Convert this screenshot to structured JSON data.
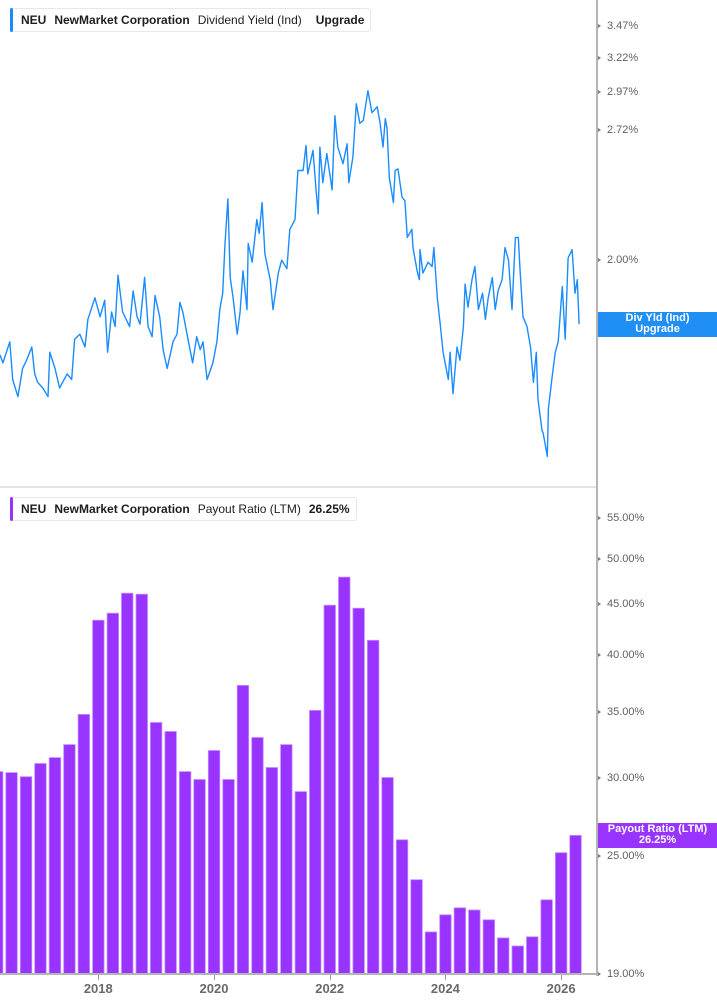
{
  "panels": {
    "top": {
      "legend": {
        "ticker": "NEU",
        "company": "NewMarket Corporation",
        "metric": "Dividend Yield (Ind)",
        "value": "Upgrade",
        "accent": "#1a8cff"
      },
      "value_tag": {
        "line1": "Div Yld (Ind)",
        "line2": "Upgrade",
        "bg": "#1f8ef5"
      }
    },
    "bottom": {
      "legend": {
        "ticker": "NEU",
        "company": "NewMarket Corporation",
        "metric": "Payout Ratio (LTM)",
        "value": "26.25%",
        "accent": "#9933ff"
      },
      "value_tag": {
        "line1": "Payout Ratio (LTM)",
        "line2": "26.25%",
        "bg": "#9933ff"
      }
    }
  },
  "x_axis": {
    "tick_labels": [
      "2018",
      "2020",
      "2022",
      "2024",
      "2026"
    ]
  },
  "chart_data": [
    {
      "type": "line",
      "title": "NEU NewMarket Corporation Dividend Yield (Ind)",
      "series_name": "Dividend Yield (Ind)",
      "color": "#1a8cff",
      "xlabel": "",
      "ylabel": "",
      "y_scale": "log",
      "grid": false,
      "legend_position": "top-left",
      "xlim": [
        2016.3,
        2026.62
      ],
      "ylim": [
        1.175,
        3.69
      ],
      "yticks": [
        3.47,
        3.22,
        2.97,
        2.72,
        2.0
      ],
      "ytick_labels": [
        "3.47%",
        "3.22%",
        "2.97%",
        "2.72%",
        "2.00%"
      ],
      "last_value_label": "Upgrade",
      "x": [
        2016.3,
        2016.35,
        2016.47,
        2016.52,
        2016.61,
        2016.69,
        2016.76,
        2016.85,
        2016.9,
        2016.95,
        2017.04,
        2017.13,
        2017.16,
        2017.25,
        2017.33,
        2017.46,
        2017.54,
        2017.59,
        2017.68,
        2017.77,
        2017.82,
        2017.94,
        2018.03,
        2018.11,
        2018.16,
        2018.23,
        2018.29,
        2018.34,
        2018.42,
        2018.54,
        2018.6,
        2018.67,
        2018.72,
        2018.8,
        2018.86,
        2018.93,
        2018.98,
        2019.06,
        2019.12,
        2019.19,
        2019.29,
        2019.36,
        2019.41,
        2019.46,
        2019.55,
        2019.63,
        2019.7,
        2019.76,
        2019.81,
        2019.88,
        2019.98,
        2020.05,
        2020.1,
        2020.15,
        2020.19,
        2020.24,
        2020.28,
        2020.33,
        2020.4,
        2020.45,
        2020.5,
        2020.57,
        2020.59,
        2020.66,
        2020.74,
        2020.78,
        2020.83,
        2020.88,
        2020.97,
        2021.02,
        2021.11,
        2021.17,
        2021.26,
        2021.31,
        2021.4,
        2021.45,
        2021.54,
        2021.59,
        2021.62,
        2021.71,
        2021.76,
        2021.8,
        2021.83,
        2021.88,
        2021.95,
        2022.04,
        2022.09,
        2022.14,
        2022.23,
        2022.3,
        2022.33,
        2022.4,
        2022.46,
        2022.52,
        2022.58,
        2022.66,
        2022.73,
        2022.82,
        2022.87,
        2022.92,
        2022.96,
        2022.99,
        2023.03,
        2023.1,
        2023.13,
        2023.18,
        2023.25,
        2023.3,
        2023.34,
        2023.42,
        2023.44,
        2023.51,
        2023.55,
        2023.56,
        2023.61,
        2023.7,
        2023.77,
        2023.8,
        2023.86,
        2023.91,
        2023.96,
        2024.05,
        2024.08,
        2024.13,
        2024.2,
        2024.25,
        2024.31,
        2024.34,
        2024.39,
        2024.46,
        2024.51,
        2024.57,
        2024.64,
        2024.69,
        2024.74,
        2024.81,
        2024.86,
        2024.91,
        2024.98,
        2025.03,
        2025.09,
        2025.15,
        2025.21,
        2025.26,
        2025.29,
        2025.34,
        2025.41,
        2025.47,
        2025.52,
        2025.57,
        2025.6,
        2025.67,
        2025.69,
        2025.76,
        2025.78,
        2025.85,
        2025.9,
        2025.95,
        2026.02,
        2026.07,
        2026.12,
        2026.19,
        2026.24,
        2026.28,
        2026.31
      ],
      "values": [
        1.6,
        1.57,
        1.65,
        1.51,
        1.45,
        1.55,
        1.58,
        1.63,
        1.53,
        1.5,
        1.48,
        1.45,
        1.61,
        1.55,
        1.48,
        1.53,
        1.51,
        1.66,
        1.68,
        1.63,
        1.74,
        1.83,
        1.75,
        1.82,
        1.61,
        1.77,
        1.71,
        1.93,
        1.77,
        1.71,
        1.86,
        1.75,
        1.72,
        1.92,
        1.71,
        1.67,
        1.84,
        1.75,
        1.62,
        1.55,
        1.65,
        1.68,
        1.81,
        1.77,
        1.66,
        1.57,
        1.67,
        1.62,
        1.65,
        1.51,
        1.57,
        1.65,
        1.78,
        1.85,
        2.08,
        2.31,
        1.92,
        1.83,
        1.68,
        1.77,
        1.95,
        1.78,
        2.08,
        1.99,
        2.2,
        2.13,
        2.29,
        2.03,
        1.91,
        1.78,
        1.94,
        2.0,
        1.96,
        2.15,
        2.2,
        2.47,
        2.47,
        2.62,
        2.45,
        2.59,
        2.37,
        2.23,
        2.61,
        2.4,
        2.57,
        2.36,
        2.81,
        2.61,
        2.51,
        2.63,
        2.4,
        2.55,
        2.89,
        2.76,
        2.78,
        2.98,
        2.83,
        2.87,
        2.76,
        2.61,
        2.79,
        2.73,
        2.43,
        2.29,
        2.47,
        2.48,
        2.32,
        2.3,
        2.11,
        2.15,
        2.06,
        1.95,
        1.91,
        2.05,
        1.94,
        1.99,
        1.97,
        2.06,
        1.83,
        1.72,
        1.61,
        1.51,
        1.61,
        1.46,
        1.63,
        1.58,
        1.71,
        1.89,
        1.79,
        1.91,
        1.97,
        1.78,
        1.85,
        1.74,
        1.83,
        1.92,
        1.78,
        1.86,
        1.91,
        2.06,
        2.0,
        1.78,
        2.11,
        2.11,
        1.95,
        1.75,
        1.71,
        1.63,
        1.5,
        1.61,
        1.44,
        1.34,
        1.33,
        1.26,
        1.41,
        1.53,
        1.61,
        1.65,
        1.88,
        1.66,
        2.01,
        2.05,
        1.85,
        1.91,
        1.72
      ]
    },
    {
      "type": "bar",
      "title": "NEU NewMarket Corporation Payout Ratio (LTM)",
      "series_name": "Payout Ratio (LTM)",
      "color": "#9933ff",
      "edge_color": "#c48cff",
      "xlabel": "",
      "ylabel": "",
      "y_scale": "log",
      "grid": false,
      "legend_position": "top-left",
      "xlim": [
        2016.3,
        2026.62
      ],
      "ylim": [
        19,
        59
      ],
      "yticks": [
        55,
        50,
        45,
        40,
        35,
        30,
        25,
        19
      ],
      "ytick_labels": [
        "55.00%",
        "50.00%",
        "45.00%",
        "40.00%",
        "35.00%",
        "30.00%",
        "25.00%",
        "19.00%"
      ],
      "last_value": 26.25,
      "categories": [
        "2016 Q1",
        "2016 Q2",
        "2016 Q3",
        "2016 Q4",
        "2017 Q1",
        "2017 Q2",
        "2017 Q3",
        "2017 Q4",
        "2018 Q1",
        "2018 Q2",
        "2018 Q3",
        "2018 Q4",
        "2019 Q1",
        "2019 Q2",
        "2019 Q3",
        "2019 Q4",
        "2020 Q1",
        "2020 Q2",
        "2020 Q3",
        "2020 Q4",
        "2021 Q1",
        "2021 Q2",
        "2021 Q3",
        "2021 Q4",
        "2022 Q1",
        "2022 Q2",
        "2022 Q3",
        "2022 Q4",
        "2023 Q1",
        "2023 Q2",
        "2023 Q3",
        "2023 Q4",
        "2024 Q1",
        "2024 Q2",
        "2024 Q3",
        "2024 Q4",
        "2025 Q1",
        "2025 Q2",
        "2025 Q3",
        "2025 Q4",
        "2026 Q1"
      ],
      "values": [
        30.46,
        30.39,
        30.1,
        31.04,
        31.47,
        32.44,
        34.8,
        43.35,
        44.06,
        46.17,
        46.06,
        34.15,
        33.44,
        30.46,
        29.9,
        31.99,
        29.9,
        37.24,
        32.98,
        30.75,
        32.44,
        29.07,
        35.13,
        44.89,
        47.93,
        44.58,
        41.37,
        30.04,
        25.98,
        23.67,
        20.96,
        21.81,
        22.17,
        22.06,
        21.56,
        20.67,
        20.28,
        20.72,
        22.59,
        25.21,
        26.25
      ]
    }
  ]
}
